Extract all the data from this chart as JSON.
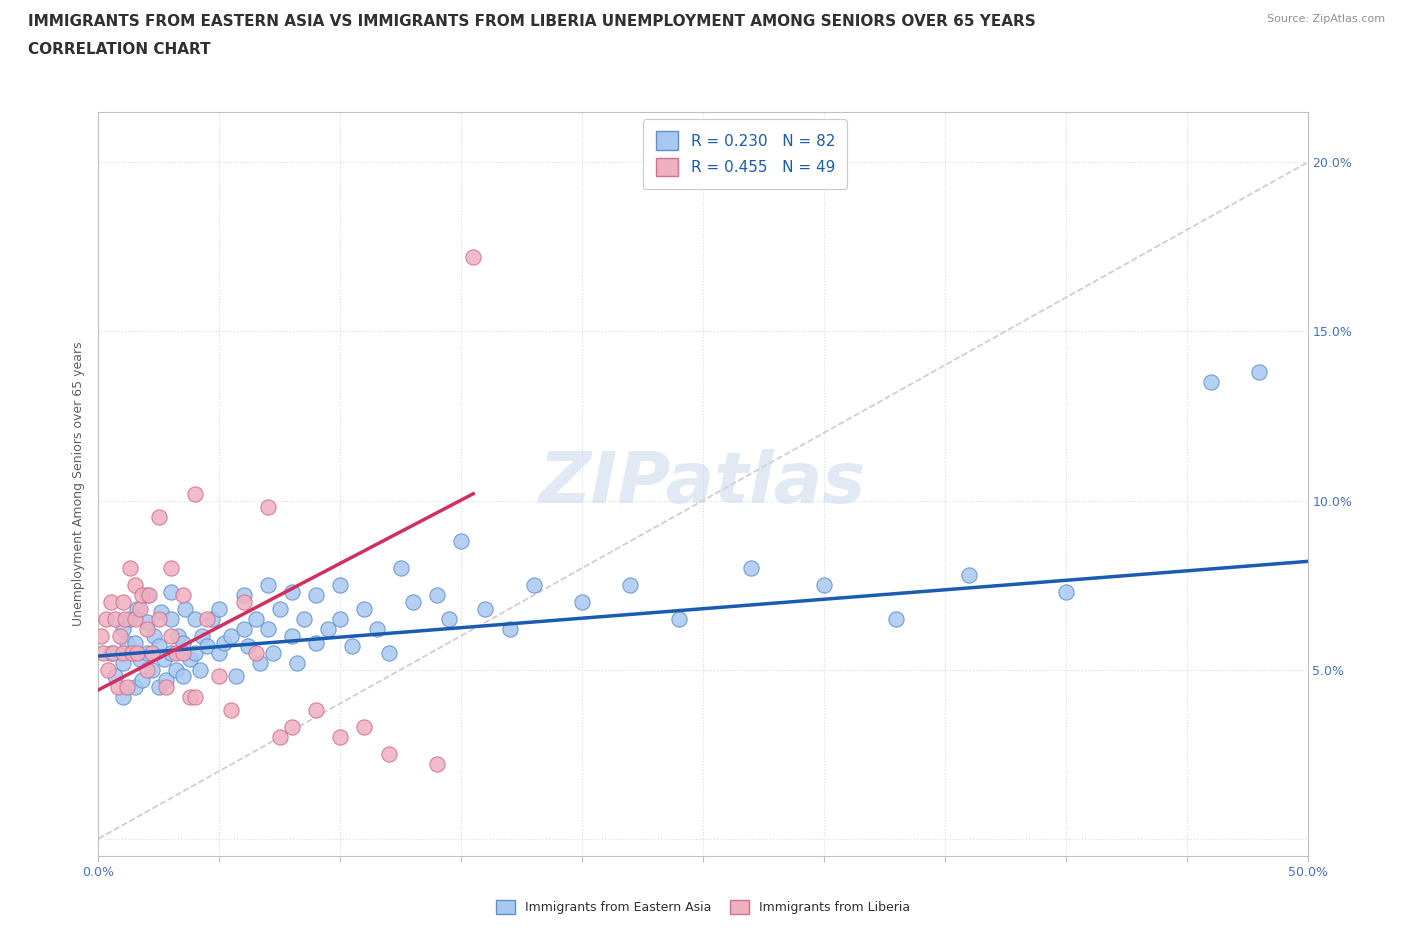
{
  "title_line1": "IMMIGRANTS FROM EASTERN ASIA VS IMMIGRANTS FROM LIBERIA UNEMPLOYMENT AMONG SENIORS OVER 65 YEARS",
  "title_line2": "CORRELATION CHART",
  "source_text": "Source: ZipAtlas.com",
  "watermark_text": "ZIPatlas",
  "ylabel": "Unemployment Among Seniors over 65 years",
  "xlim": [
    0.0,
    0.5
  ],
  "ylim": [
    -0.005,
    0.215
  ],
  "xtick_positions": [
    0.0,
    0.05,
    0.1,
    0.15,
    0.2,
    0.25,
    0.3,
    0.35,
    0.4,
    0.45,
    0.5
  ],
  "ytick_positions": [
    0.0,
    0.05,
    0.1,
    0.15,
    0.2
  ],
  "blue_color": "#a8c8f0",
  "blue_edge_color": "#6090d0",
  "pink_color": "#f0b0c0",
  "pink_edge_color": "#d07090",
  "blue_line_color": "#1a5cb0",
  "pink_line_color": "#d03060",
  "diag_line_color": "#d0c0c8",
  "R_blue": 0.23,
  "N_blue": 82,
  "R_pink": 0.455,
  "N_pink": 49,
  "blue_trend_x0": 0.0,
  "blue_trend_y0": 0.054,
  "blue_trend_x1": 0.5,
  "blue_trend_y1": 0.082,
  "pink_trend_x0": 0.0,
  "pink_trend_y0": 0.044,
  "pink_trend_x1": 0.155,
  "pink_trend_y1": 0.102,
  "blue_scatter_x": [
    0.005,
    0.007,
    0.01,
    0.01,
    0.01,
    0.012,
    0.013,
    0.015,
    0.015,
    0.016,
    0.017,
    0.018,
    0.02,
    0.02,
    0.02,
    0.022,
    0.023,
    0.025,
    0.025,
    0.026,
    0.027,
    0.028,
    0.03,
    0.03,
    0.03,
    0.032,
    0.033,
    0.035,
    0.035,
    0.036,
    0.038,
    0.04,
    0.04,
    0.042,
    0.043,
    0.045,
    0.047,
    0.05,
    0.05,
    0.052,
    0.055,
    0.057,
    0.06,
    0.06,
    0.062,
    0.065,
    0.067,
    0.07,
    0.07,
    0.072,
    0.075,
    0.08,
    0.08,
    0.082,
    0.085,
    0.09,
    0.09,
    0.095,
    0.1,
    0.1,
    0.105,
    0.11,
    0.115,
    0.12,
    0.125,
    0.13,
    0.14,
    0.145,
    0.15,
    0.16,
    0.17,
    0.18,
    0.2,
    0.22,
    0.24,
    0.27,
    0.3,
    0.33,
    0.36,
    0.4,
    0.46,
    0.48
  ],
  "blue_scatter_y": [
    0.055,
    0.048,
    0.042,
    0.052,
    0.062,
    0.058,
    0.065,
    0.045,
    0.058,
    0.068,
    0.053,
    0.047,
    0.055,
    0.064,
    0.072,
    0.05,
    0.06,
    0.045,
    0.057,
    0.067,
    0.053,
    0.047,
    0.055,
    0.065,
    0.073,
    0.05,
    0.06,
    0.048,
    0.058,
    0.068,
    0.053,
    0.055,
    0.065,
    0.05,
    0.06,
    0.057,
    0.065,
    0.055,
    0.068,
    0.058,
    0.06,
    0.048,
    0.062,
    0.072,
    0.057,
    0.065,
    0.052,
    0.062,
    0.075,
    0.055,
    0.068,
    0.06,
    0.073,
    0.052,
    0.065,
    0.058,
    0.072,
    0.062,
    0.065,
    0.075,
    0.057,
    0.068,
    0.062,
    0.055,
    0.08,
    0.07,
    0.072,
    0.065,
    0.088,
    0.068,
    0.062,
    0.075,
    0.07,
    0.075,
    0.065,
    0.08,
    0.075,
    0.065,
    0.078,
    0.073,
    0.135,
    0.138
  ],
  "pink_scatter_x": [
    0.001,
    0.002,
    0.003,
    0.004,
    0.005,
    0.006,
    0.007,
    0.008,
    0.009,
    0.01,
    0.01,
    0.011,
    0.012,
    0.013,
    0.014,
    0.015,
    0.015,
    0.016,
    0.017,
    0.018,
    0.02,
    0.02,
    0.021,
    0.022,
    0.025,
    0.025,
    0.028,
    0.03,
    0.03,
    0.032,
    0.035,
    0.035,
    0.038,
    0.04,
    0.04,
    0.045,
    0.05,
    0.055,
    0.06,
    0.065,
    0.07,
    0.075,
    0.08,
    0.09,
    0.1,
    0.11,
    0.12,
    0.14,
    0.155
  ],
  "pink_scatter_y": [
    0.06,
    0.055,
    0.065,
    0.05,
    0.07,
    0.055,
    0.065,
    0.045,
    0.06,
    0.055,
    0.07,
    0.065,
    0.045,
    0.08,
    0.055,
    0.065,
    0.075,
    0.055,
    0.068,
    0.072,
    0.05,
    0.062,
    0.072,
    0.055,
    0.065,
    0.095,
    0.045,
    0.06,
    0.08,
    0.055,
    0.055,
    0.072,
    0.042,
    0.042,
    0.102,
    0.065,
    0.048,
    0.038,
    0.07,
    0.055,
    0.098,
    0.03,
    0.033,
    0.038,
    0.03,
    0.033,
    0.025,
    0.022,
    0.172
  ],
  "title_fontsize": 11,
  "axis_label_fontsize": 9,
  "tick_fontsize": 9,
  "legend_fontsize": 11,
  "source_fontsize": 8
}
